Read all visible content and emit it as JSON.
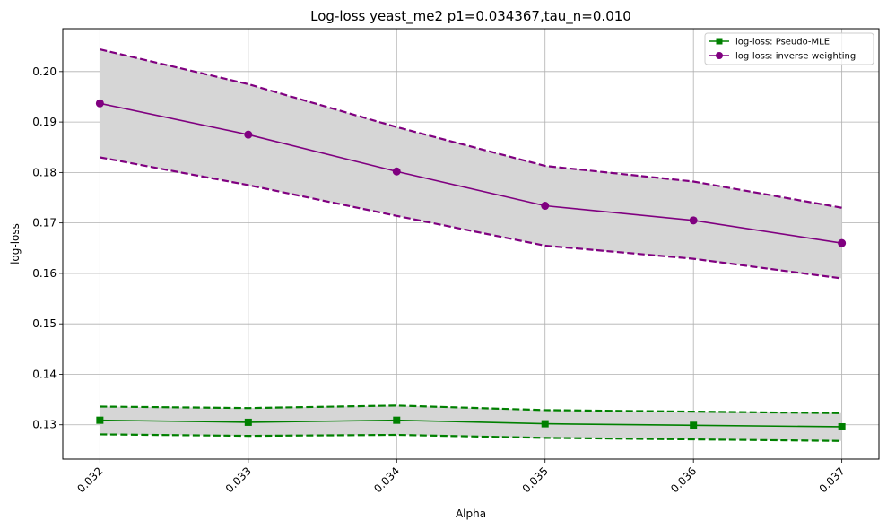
{
  "chart_data": {
    "type": "line",
    "title": "Log-loss yeast_me2 p1=0.034367,tau_n=0.010",
    "xlabel": "Alpha",
    "ylabel": "log-loss",
    "x": [
      0.032,
      0.033,
      0.034,
      0.035,
      0.036,
      0.037
    ],
    "x_tick_labels": [
      "0.032",
      "0.033",
      "0.034",
      "0.035",
      "0.036",
      "0.037"
    ],
    "xlim": [
      0.03175,
      0.03725
    ],
    "ylim": [
      0.1232,
      0.2085
    ],
    "y_ticks": [
      0.13,
      0.14,
      0.15,
      0.16,
      0.17,
      0.18,
      0.19,
      0.2
    ],
    "y_tick_labels": [
      "0.13",
      "0.14",
      "0.15",
      "0.16",
      "0.17",
      "0.18",
      "0.19",
      "0.20"
    ],
    "grid": true,
    "legend_position": "top-right",
    "band_color": "#d6d6d6",
    "series": [
      {
        "name": "log-loss: Pseudo-MLE",
        "color": "#008000",
        "marker": "square",
        "values": [
          0.1309,
          0.1305,
          0.1309,
          0.1302,
          0.1299,
          0.1296
        ],
        "upper": [
          0.1336,
          0.1333,
          0.1338,
          0.1329,
          0.1326,
          0.1323
        ],
        "lower": [
          0.1281,
          0.1278,
          0.128,
          0.1274,
          0.1271,
          0.1268
        ]
      },
      {
        "name": "log-loss: inverse-weighting",
        "color": "#800080",
        "marker": "circle",
        "values": [
          0.1937,
          0.1875,
          0.1802,
          0.1734,
          0.1705,
          0.166
        ],
        "upper": [
          0.2044,
          0.1975,
          0.189,
          0.1813,
          0.1782,
          0.173
        ],
        "lower": [
          0.183,
          0.1775,
          0.1714,
          0.1655,
          0.1629,
          0.159
        ]
      }
    ]
  }
}
